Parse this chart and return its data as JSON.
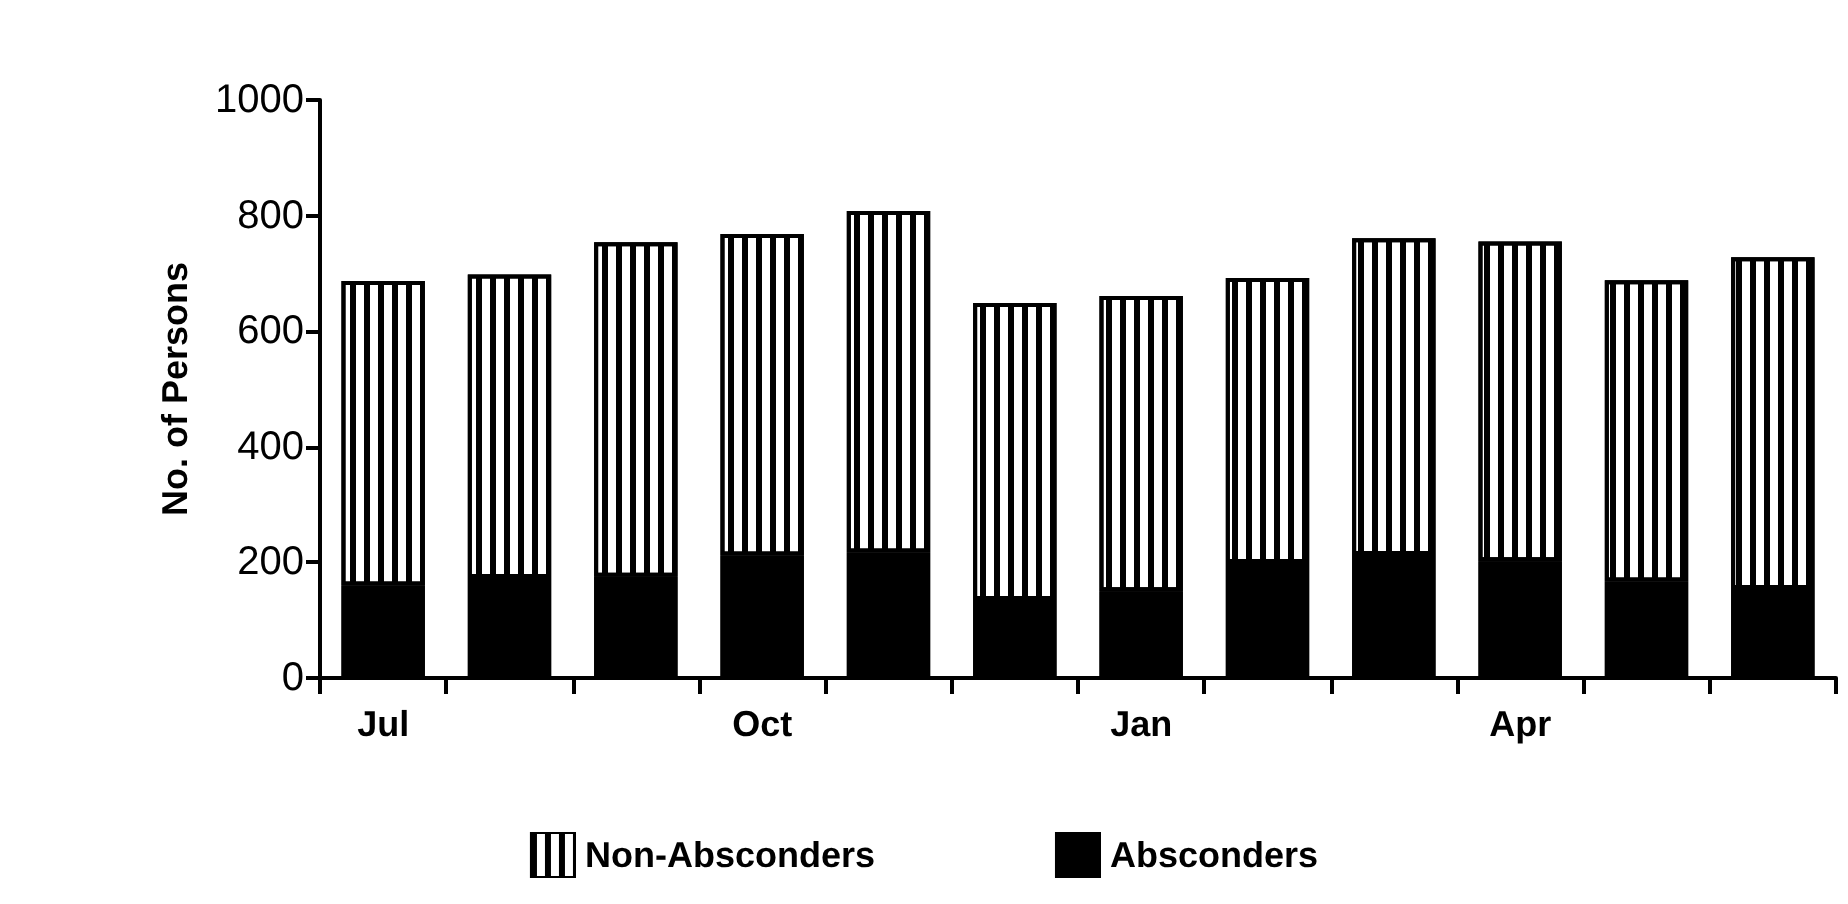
{
  "chart_data": {
    "type": "bar",
    "stacked": true,
    "ylabel": "No. of Persons",
    "categories": [
      "Jul",
      null,
      null,
      "Oct",
      null,
      null,
      "Jan",
      null,
      null,
      "Apr",
      null,
      null
    ],
    "series": [
      {
        "name": "Absconders",
        "color": "#000000",
        "values": [
          160,
          173,
          175,
          212,
          217,
          135,
          150,
          199,
          213,
          202,
          167,
          154
        ]
      },
      {
        "name": "Non-Absconders",
        "color": "#ffffff",
        "values": [
          527,
          525,
          579,
          556,
          591,
          514,
          511,
          493,
          548,
          553,
          521,
          574
        ]
      }
    ],
    "ylim": [
      0,
      1000
    ],
    "yticks": [
      0,
      200,
      400,
      600,
      800,
      1000
    ],
    "grid": false,
    "legend": "bottom"
  }
}
